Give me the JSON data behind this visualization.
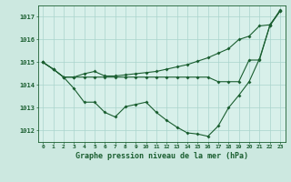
{
  "title": "Graphe pression niveau de la mer (hPa)",
  "bg_color": "#cce8e0",
  "plot_bg_color": "#d8f0ea",
  "grid_color": "#aad4cc",
  "line_color": "#1a5e30",
  "xlim": [
    -0.5,
    23.5
  ],
  "ylim": [
    1011.5,
    1017.5
  ],
  "xticks": [
    0,
    1,
    2,
    3,
    4,
    5,
    6,
    7,
    8,
    9,
    10,
    11,
    12,
    13,
    14,
    15,
    16,
    17,
    18,
    19,
    20,
    21,
    22,
    23
  ],
  "yticks": [
    1012,
    1013,
    1014,
    1015,
    1016,
    1017
  ],
  "series1": [
    1015.0,
    1014.7,
    1014.35,
    1014.35,
    1014.35,
    1014.35,
    1014.35,
    1014.35,
    1014.35,
    1014.35,
    1014.35,
    1014.35,
    1014.35,
    1014.35,
    1014.35,
    1014.35,
    1014.35,
    1014.15,
    1014.15,
    1014.15,
    1015.1,
    1015.1,
    1016.6,
    1017.25
  ],
  "series2": [
    1015.0,
    1014.7,
    1014.35,
    1013.85,
    1013.25,
    1013.25,
    1012.8,
    1012.6,
    1013.05,
    1013.15,
    1013.25,
    1012.8,
    1012.45,
    1012.15,
    1011.9,
    1011.85,
    1011.75,
    1012.2,
    1013.0,
    1013.55,
    1014.15,
    1015.15,
    1016.6,
    1017.3
  ],
  "series3": [
    1015.0,
    1014.7,
    1014.35,
    1014.35,
    1014.5,
    1014.6,
    1014.4,
    1014.4,
    1014.45,
    1014.5,
    1014.55,
    1014.6,
    1014.7,
    1014.8,
    1014.9,
    1015.05,
    1015.2,
    1015.4,
    1015.6,
    1016.0,
    1016.15,
    1016.6,
    1016.65,
    1017.25
  ]
}
